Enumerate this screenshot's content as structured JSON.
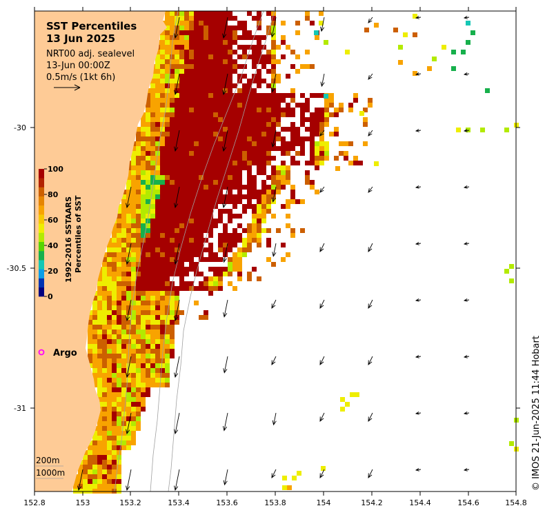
{
  "title": {
    "line1": "SST Percentiles",
    "line2": "13 Jun 2025"
  },
  "current_info": {
    "product": "NRT00 adj. sealevel",
    "time": "13-Jun 00:00Z",
    "scale": "0.5m/s (1kt 6h)"
  },
  "axes": {
    "x_ticks": [
      "152.8",
      "153",
      "153.2",
      "153.4",
      "153.6",
      "153.8",
      "154",
      "154.2",
      "154.4",
      "154.6",
      "154.8"
    ],
    "y_ticks": [
      "-30",
      "-30.5",
      "-31"
    ]
  },
  "colorbar": {
    "title_line1": "1992-2016 SSTAARS",
    "title_line2": "Percentiles of SST",
    "tick_labels": [
      "100",
      "80",
      "60",
      "40",
      "20",
      "0"
    ],
    "colors": [
      "#00007f",
      "#0033b2",
      "#0a9ee8",
      "#15c7b5",
      "#17b04c",
      "#57d400",
      "#b3ea00",
      "#eeee00",
      "#f7c800",
      "#f8a300",
      "#e68500",
      "#cc5f00",
      "#b22200",
      "#a50000"
    ]
  },
  "legend": {
    "argo_label": "Argo",
    "argo_color": "#ff00ff",
    "depth_200": "200m",
    "depth_1000": "1000m"
  },
  "credit": "© IMOS 21-Jun-2025 11:44 Hobart",
  "colors": {
    "land": "#fecb96",
    "p100": "#a50000",
    "p85": "#cc5f00",
    "p75": "#f8a300",
    "p65": "#eeee00",
    "p55": "#b3ea00",
    "p45": "#17b04c",
    "p35": "#15c7b5"
  }
}
